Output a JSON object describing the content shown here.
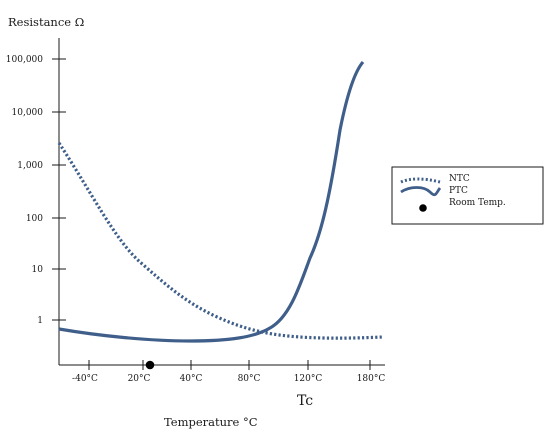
{
  "chart_data": {
    "type": "line",
    "ylabel": "Resistance Ω",
    "xlabel": "Temperature  °C",
    "annotation": "Tc",
    "y_scale": "log",
    "y_tick_labels": [
      "1",
      "10",
      "100",
      "1,000",
      "10,000",
      "100,000"
    ],
    "y_ticks": [
      1,
      10,
      100,
      1000,
      10000,
      100000
    ],
    "ylim": [
      0.4,
      100000
    ],
    "x_tick_labels": [
      "-40°C",
      "20°C",
      "40°C",
      "80°C",
      "120°C",
      "180°C"
    ],
    "grid": false,
    "legend": {
      "placement": "right",
      "entries": [
        {
          "label": "NTC",
          "style": "dotted"
        },
        {
          "label": "PTC",
          "style": "solid"
        },
        {
          "label": "Room Temp.",
          "style": "dot"
        }
      ]
    },
    "line_color": "#3f5f8a",
    "series": [
      {
        "name": "NTC",
        "style": "dotted",
        "points": [
          [
            0,
            2500
          ],
          [
            1,
            400
          ],
          [
            2,
            70
          ],
          [
            3,
            14
          ],
          [
            4,
            4
          ],
          [
            5,
            1.6
          ],
          [
            6,
            0.9
          ],
          [
            7,
            0.65
          ],
          [
            8,
            0.53
          ],
          [
            9,
            0.5
          ],
          [
            10,
            0.49
          ],
          [
            11,
            0.5
          ]
        ]
      },
      {
        "name": "PTC",
        "style": "solid",
        "points": [
          [
            0,
            0.65
          ],
          [
            1,
            0.58
          ],
          [
            2,
            0.5
          ],
          [
            3,
            0.44
          ],
          [
            4,
            0.42
          ],
          [
            5,
            0.46
          ],
          [
            6,
            0.6
          ],
          [
            7,
            1.0
          ],
          [
            8,
            2.5
          ],
          [
            8.5,
            8
          ],
          [
            9,
            40
          ],
          [
            9.5,
            500
          ],
          [
            10,
            15000
          ],
          [
            10.5,
            70000
          ],
          [
            11,
            90000
          ]
        ]
      }
    ],
    "marker": {
      "name": "Room Temp.",
      "x": 20,
      "y_position": "x-axis"
    }
  }
}
